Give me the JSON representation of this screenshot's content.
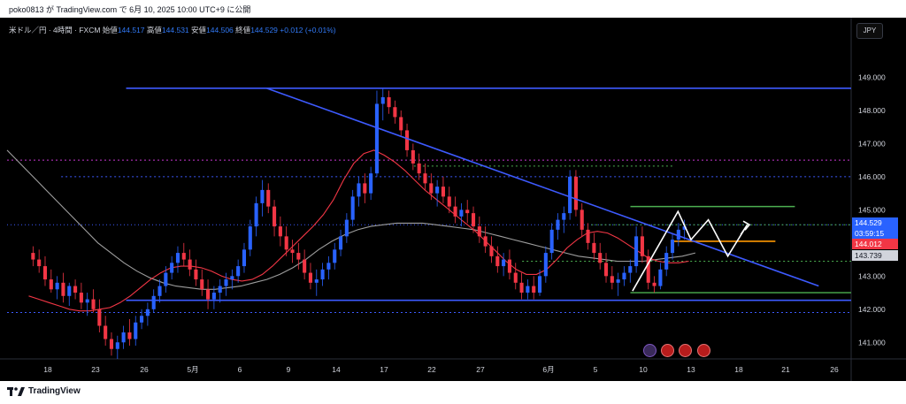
{
  "header": {
    "text": "poko0813 が TradingView.com で 6月 10, 2025 10:00 UTC+9 に公開"
  },
  "legend": {
    "symbol": "米ドル／円 · 4時間 · FXCM",
    "open_label": "始値",
    "open": "144.517",
    "high_label": "高値",
    "high": "144.531",
    "low_label": "安値",
    "low": "144.506",
    "close_label": "終値",
    "close": "144.529",
    "change": "+0.012 (+0.01%)"
  },
  "currency_button": "JPY",
  "price_axis": {
    "ticks": [
      {
        "value": 149.0,
        "label": "149.000"
      },
      {
        "value": 148.0,
        "label": "148.000"
      },
      {
        "value": 147.0,
        "label": "147.000"
      },
      {
        "value": 146.0,
        "label": "146.000"
      },
      {
        "value": 145.0,
        "label": "145.000"
      },
      {
        "value": 143.0,
        "label": "143.000"
      },
      {
        "value": 142.0,
        "label": "142.000"
      },
      {
        "value": 141.0,
        "label": "141.000"
      }
    ],
    "badges": {
      "current_price": "144.529",
      "countdown": "03:59:15",
      "red_level": "144.012",
      "gray_level": "143.739"
    }
  },
  "time_axis": {
    "labels": [
      "18",
      "23",
      "26",
      "5月",
      "6",
      "9",
      "14",
      "17",
      "22",
      "27",
      "6月",
      "5",
      "10",
      "13",
      "18",
      "21",
      "26"
    ]
  },
  "footer": {
    "brand": "TradingView"
  },
  "colors": {
    "up_candle": "#2962ff",
    "down_candle": "#f23645",
    "trendline": "#3d5afe",
    "ma_fast": "#f23645",
    "ma_slow": "#9e9e9e",
    "green_level": "#4caf50",
    "orange_level": "#ff9800",
    "magenta_level": "#c837d1"
  },
  "chart_data": {
    "type": "candlestick",
    "title": "米ドル／円 · 4時間 · FXCM",
    "ylim": [
      140.5,
      150.0
    ],
    "x_range_days": [
      16,
      55
    ],
    "annotations": {
      "horizontal_levels_solid": [
        148.67,
        142.27
      ],
      "horizontal_levels_dotted": [
        146.5,
        146.0,
        144.55,
        141.9
      ],
      "green_levels": [
        146.32,
        145.1,
        144.55,
        143.45,
        142.5
      ],
      "orange_level": 144.05,
      "descending_trendline": [
        {
          "day": 28.0,
          "price": 148.67
        },
        {
          "day": 53.5,
          "price": 142.7
        }
      ],
      "projection_path": [
        142.55,
        144.95,
        144.1,
        144.7,
        143.6,
        144.55,
        144.25
      ]
    },
    "ohlc": [
      [
        143.7,
        143.9,
        143.3,
        143.5
      ],
      [
        143.5,
        143.8,
        143.1,
        143.3
      ],
      [
        143.3,
        143.6,
        142.7,
        142.9
      ],
      [
        142.9,
        143.2,
        142.5,
        142.6
      ],
      [
        142.6,
        143.0,
        142.3,
        142.8
      ],
      [
        142.8,
        143.1,
        142.2,
        142.4
      ],
      [
        142.4,
        142.8,
        142.1,
        142.7
      ],
      [
        142.7,
        142.9,
        142.3,
        142.5
      ],
      [
        142.5,
        142.8,
        142.0,
        142.2
      ],
      [
        142.2,
        142.5,
        141.8,
        142.3
      ],
      [
        142.3,
        142.6,
        141.9,
        142.0
      ],
      [
        142.0,
        142.3,
        141.3,
        141.5
      ],
      [
        141.5,
        141.8,
        140.9,
        141.1
      ],
      [
        141.1,
        141.3,
        140.6,
        140.8
      ],
      [
        140.8,
        141.2,
        140.5,
        141.0
      ],
      [
        141.0,
        141.5,
        140.8,
        141.3
      ],
      [
        141.3,
        141.7,
        140.9,
        141.1
      ],
      [
        141.1,
        141.8,
        140.9,
        141.6
      ],
      [
        141.6,
        142.0,
        141.4,
        141.8
      ],
      [
        141.8,
        142.2,
        141.5,
        142.0
      ],
      [
        142.0,
        142.6,
        141.9,
        142.4
      ],
      [
        142.4,
        142.9,
        142.2,
        142.7
      ],
      [
        142.7,
        143.3,
        142.5,
        143.1
      ],
      [
        143.1,
        143.6,
        142.9,
        143.4
      ],
      [
        143.4,
        143.9,
        143.1,
        143.7
      ],
      [
        143.7,
        144.0,
        143.3,
        143.5
      ],
      [
        143.5,
        143.8,
        143.0,
        143.2
      ],
      [
        143.2,
        143.5,
        142.7,
        142.9
      ],
      [
        142.9,
        143.2,
        142.4,
        142.6
      ],
      [
        142.6,
        142.9,
        142.0,
        142.3
      ],
      [
        142.3,
        142.7,
        142.0,
        142.5
      ],
      [
        142.5,
        142.9,
        142.2,
        142.7
      ],
      [
        142.7,
        143.1,
        142.4,
        142.9
      ],
      [
        142.9,
        143.2,
        142.6,
        143.0
      ],
      [
        143.0,
        143.5,
        142.8,
        143.3
      ],
      [
        143.3,
        144.0,
        143.1,
        143.8
      ],
      [
        143.8,
        144.7,
        143.6,
        144.5
      ],
      [
        144.5,
        145.4,
        144.2,
        145.2
      ],
      [
        145.2,
        145.9,
        144.8,
        145.6
      ],
      [
        145.6,
        145.8,
        144.9,
        145.1
      ],
      [
        145.1,
        145.3,
        144.2,
        144.5
      ],
      [
        144.5,
        144.8,
        143.9,
        144.2
      ],
      [
        144.2,
        144.5,
        143.6,
        143.8
      ],
      [
        143.8,
        144.1,
        143.4,
        143.7
      ],
      [
        143.7,
        144.0,
        143.2,
        143.5
      ],
      [
        143.5,
        143.8,
        142.9,
        143.1
      ],
      [
        143.1,
        143.4,
        142.6,
        142.8
      ],
      [
        142.8,
        143.2,
        142.4,
        142.9
      ],
      [
        142.9,
        143.4,
        142.7,
        143.2
      ],
      [
        143.2,
        143.6,
        142.9,
        143.4
      ],
      [
        143.4,
        144.0,
        143.2,
        143.8
      ],
      [
        143.8,
        144.4,
        143.6,
        144.2
      ],
      [
        144.2,
        144.9,
        144.0,
        144.7
      ],
      [
        144.7,
        145.6,
        144.5,
        145.4
      ],
      [
        145.4,
        146.0,
        145.1,
        145.8
      ],
      [
        145.8,
        146.1,
        145.2,
        145.5
      ],
      [
        145.5,
        146.3,
        145.3,
        146.1
      ],
      [
        146.1,
        148.6,
        146.0,
        148.2
      ],
      [
        148.2,
        148.65,
        147.7,
        148.4
      ],
      [
        148.4,
        148.6,
        147.9,
        148.1
      ],
      [
        148.1,
        148.3,
        147.6,
        147.8
      ],
      [
        147.8,
        148.0,
        147.2,
        147.4
      ],
      [
        147.4,
        147.6,
        146.6,
        146.8
      ],
      [
        146.8,
        147.0,
        146.2,
        146.4
      ],
      [
        146.4,
        146.7,
        145.9,
        146.1
      ],
      [
        146.1,
        146.4,
        145.6,
        145.8
      ],
      [
        145.8,
        146.1,
        145.3,
        145.5
      ],
      [
        145.5,
        145.9,
        145.1,
        145.7
      ],
      [
        145.7,
        146.0,
        145.2,
        145.4
      ],
      [
        145.4,
        145.7,
        144.9,
        145.1
      ],
      [
        145.1,
        145.4,
        144.6,
        144.8
      ],
      [
        144.8,
        145.2,
        144.5,
        145.0
      ],
      [
        145.0,
        145.3,
        144.6,
        144.9
      ],
      [
        144.9,
        145.1,
        144.3,
        144.5
      ],
      [
        144.5,
        144.8,
        144.0,
        144.2
      ],
      [
        144.2,
        144.5,
        143.7,
        143.9
      ],
      [
        143.9,
        144.2,
        143.4,
        143.6
      ],
      [
        143.6,
        143.9,
        143.1,
        143.3
      ],
      [
        143.3,
        143.7,
        143.0,
        143.5
      ],
      [
        143.5,
        143.8,
        142.9,
        143.1
      ],
      [
        143.1,
        143.4,
        142.6,
        142.8
      ],
      [
        142.8,
        143.1,
        142.3,
        142.5
      ],
      [
        142.5,
        142.9,
        142.3,
        142.7
      ],
      [
        142.7,
        143.0,
        142.3,
        142.5
      ],
      [
        142.5,
        143.2,
        142.4,
        143.0
      ],
      [
        143.0,
        143.9,
        142.8,
        143.7
      ],
      [
        143.7,
        144.6,
        143.5,
        144.4
      ],
      [
        144.4,
        144.9,
        144.1,
        144.7
      ],
      [
        144.7,
        145.1,
        144.3,
        144.9
      ],
      [
        144.9,
        146.2,
        144.7,
        146.0
      ],
      [
        146.0,
        146.2,
        144.8,
        145.0
      ],
      [
        145.0,
        145.2,
        144.2,
        144.4
      ],
      [
        144.4,
        144.6,
        143.8,
        144.0
      ],
      [
        144.0,
        144.3,
        143.5,
        143.7
      ],
      [
        143.7,
        144.0,
        143.2,
        143.4
      ],
      [
        143.4,
        143.7,
        142.8,
        143.0
      ],
      [
        143.0,
        143.3,
        142.6,
        142.8
      ],
      [
        142.8,
        143.1,
        142.4,
        142.9
      ],
      [
        142.9,
        143.3,
        142.7,
        143.1
      ],
      [
        143.1,
        143.5,
        142.8,
        143.3
      ],
      [
        143.3,
        144.5,
        143.1,
        144.2
      ],
      [
        144.2,
        144.5,
        143.4,
        143.6
      ],
      [
        143.6,
        143.8,
        142.6,
        142.8
      ],
      [
        142.8,
        143.0,
        142.5,
        142.7
      ],
      [
        142.7,
        143.4,
        142.6,
        143.2
      ],
      [
        143.2,
        143.9,
        143.0,
        143.7
      ],
      [
        143.7,
        144.3,
        143.5,
        144.1
      ],
      [
        144.1,
        144.6,
        143.9,
        144.4
      ],
      [
        144.4,
        144.7,
        144.1,
        144.5
      ]
    ],
    "ma_fast": [
      142.4,
      142.3,
      142.2,
      142.1,
      142.0,
      141.95,
      141.95,
      142.0,
      142.05,
      142.2,
      142.4,
      142.65,
      142.9,
      143.1,
      143.25,
      143.3,
      143.3,
      143.25,
      143.15,
      143.0,
      142.9,
      142.85,
      142.9,
      143.05,
      143.3,
      143.6,
      143.9,
      144.2,
      144.5,
      144.85,
      145.3,
      145.9,
      146.4,
      146.7,
      146.8,
      146.65,
      146.45,
      146.2,
      145.9,
      145.6,
      145.35,
      145.1,
      144.85,
      144.6,
      144.35,
      144.05,
      143.75,
      143.45,
      143.2,
      143.05,
      143.05,
      143.2,
      143.5,
      143.85,
      144.1,
      144.3,
      144.35,
      144.3,
      144.15,
      143.95,
      143.75,
      143.55,
      143.45,
      143.4,
      143.4,
      143.45
    ],
    "ma_slow": [
      146.8,
      146.4,
      146.0,
      145.6,
      145.2,
      144.8,
      144.4,
      144.0,
      143.7,
      143.4,
      143.15,
      142.95,
      142.8,
      142.7,
      142.65,
      142.6,
      142.6,
      142.65,
      142.7,
      142.8,
      142.9,
      143.05,
      143.25,
      143.5,
      143.8,
      144.05,
      144.25,
      144.4,
      144.5,
      144.55,
      144.6,
      144.6,
      144.6,
      144.55,
      144.5,
      144.45,
      144.4,
      144.3,
      144.2,
      144.1,
      144.0,
      143.9,
      143.8,
      143.7,
      143.6,
      143.55,
      143.5,
      143.45,
      143.45,
      143.45,
      143.5,
      143.55,
      143.6,
      143.7
    ]
  }
}
